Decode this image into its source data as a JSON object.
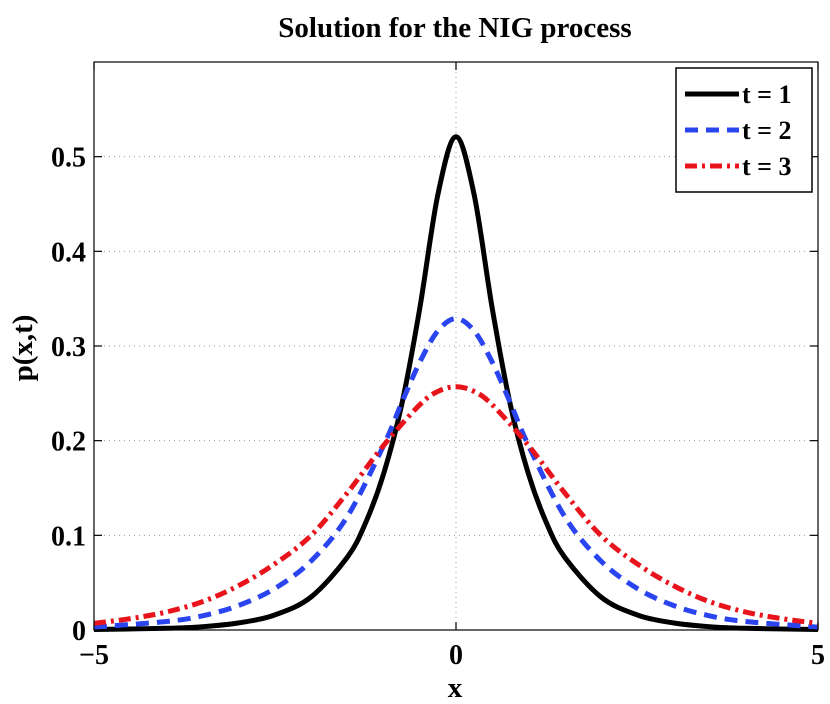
{
  "chart_data": {
    "type": "line",
    "title": "Solution for the NIG process",
    "xlabel": "x",
    "ylabel": "p(x,t)",
    "xlim": [
      -5,
      5
    ],
    "ylim": [
      0,
      0.6
    ],
    "xticks": [
      -5,
      0,
      5
    ],
    "xtick_labels": [
      "−5",
      "0",
      "5"
    ],
    "yticks": [
      0,
      0.1,
      0.2,
      0.3,
      0.4,
      0.5
    ],
    "ytick_labels": [
      "0",
      "0.1",
      "0.2",
      "0.3",
      "0.4",
      "0.5"
    ],
    "grid": true,
    "legend_position": "top-right",
    "series": [
      {
        "name": "t = 1",
        "color": "#000000",
        "style": "solid",
        "x": [
          -5,
          -4,
          -3.5,
          -3,
          -2.5,
          -2,
          -1.5,
          -1.25,
          -1,
          -0.75,
          -0.5,
          -0.25,
          0,
          0.25,
          0.5,
          0.75,
          1,
          1.25,
          1.5,
          2,
          2.5,
          3,
          3.5,
          4,
          5
        ],
        "y": [
          0.0005,
          0.0018,
          0.0035,
          0.0075,
          0.016,
          0.035,
          0.077,
          0.113,
          0.165,
          0.238,
          0.34,
          0.46,
          0.521,
          0.46,
          0.34,
          0.238,
          0.165,
          0.113,
          0.077,
          0.035,
          0.016,
          0.0075,
          0.0035,
          0.0018,
          0.0005
        ]
      },
      {
        "name": "t = 2",
        "color": "#2a44f0",
        "style": "dashed",
        "x": [
          -5,
          -4,
          -3.5,
          -3,
          -2.5,
          -2,
          -1.5,
          -1,
          -0.75,
          -0.5,
          -0.25,
          0,
          0.25,
          0.5,
          0.75,
          1,
          1.5,
          2,
          2.5,
          3,
          3.5,
          4,
          5
        ],
        "y": [
          0.003,
          0.009,
          0.015,
          0.026,
          0.044,
          0.073,
          0.12,
          0.195,
          0.24,
          0.283,
          0.316,
          0.329,
          0.316,
          0.283,
          0.24,
          0.195,
          0.12,
          0.073,
          0.044,
          0.026,
          0.015,
          0.009,
          0.003
        ]
      },
      {
        "name": "t = 3",
        "color": "#e8131b",
        "style": "dashdot",
        "x": [
          -5,
          -4.5,
          -4,
          -3.5,
          -3,
          -2.5,
          -2,
          -1.5,
          -1,
          -0.5,
          -0.25,
          0,
          0.25,
          0.5,
          1,
          1.5,
          2,
          2.5,
          3,
          3.5,
          4,
          4.5,
          5
        ],
        "y": [
          0.007,
          0.012,
          0.019,
          0.03,
          0.047,
          0.07,
          0.1,
          0.145,
          0.195,
          0.238,
          0.252,
          0.257,
          0.252,
          0.238,
          0.195,
          0.145,
          0.1,
          0.07,
          0.047,
          0.03,
          0.019,
          0.012,
          0.007
        ]
      }
    ]
  }
}
